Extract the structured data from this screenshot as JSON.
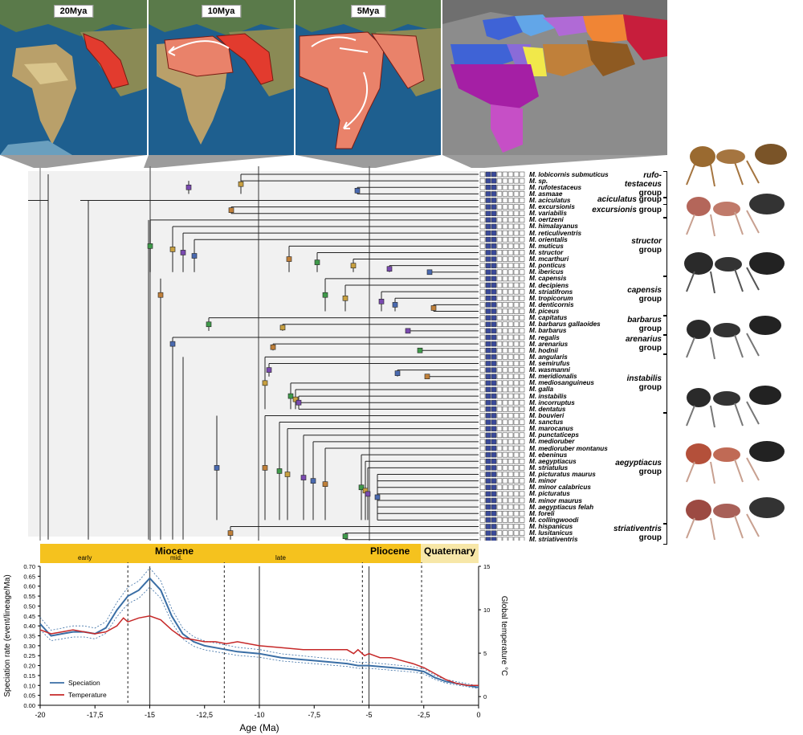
{
  "maps": [
    {
      "label": "20Mya"
    },
    {
      "label": "10Mya"
    },
    {
      "label": "5Mya"
    },
    {
      "label": ""
    }
  ],
  "tips": [
    "M. lobicornis submuticus",
    "M. sp.",
    "M. rufotestaceus",
    "M. asmaae",
    "M. aciculatus",
    "M. excursionis",
    "M. variabilis",
    "M. oertzeni",
    "M. himalayanus",
    "M. reticuliventris",
    "M. orientalis",
    "M. muticus",
    "M. structor",
    "M. mcarthuri",
    "M. ponticus",
    "M. ibericus",
    "M. capensis",
    "M. decipiens",
    "M. striatifrons",
    "M. tropicorum",
    "M. denticornis",
    "M. piceus",
    "M. capitatus",
    "M. barbarus gallaoides",
    "M. barbarus",
    "M. regalis",
    "M. arenarius",
    "M. hodnii",
    "M. angularis",
    "M. semirufus",
    "M. wasmanni",
    "M. meridionalis",
    "M. mediosanguineus",
    "M. galla",
    "M. instabilis",
    "M. incorruptus",
    "M. dentatus",
    "M. bouvieri",
    "M. sanctus",
    "M. marocanus",
    "M. punctaticeps",
    "M. medioruber",
    "M. medioruber montanus",
    "M. ebeninus",
    "M. aegyptiacus",
    "M. striatulus",
    "M. picturatus maurus",
    "M. minor",
    "M. minor calabricus",
    "M. picturatus",
    "M. minor maurus",
    "M. aegyptiacus felah",
    "M. foreli",
    "M. collingwoodi",
    "M. hispanicus",
    "M. lusitanicus",
    "M. striativentris"
  ],
  "groups": [
    {
      "name": "rufo-",
      "name2": "testaceus",
      "word": "group"
    },
    {
      "name": "aciculatus",
      "word": "group"
    },
    {
      "name": "excursionis",
      "word": "group"
    },
    {
      "name": "structor",
      "word": "group"
    },
    {
      "name": "capensis",
      "word": "group"
    },
    {
      "name": "barbarus",
      "word": "group"
    },
    {
      "name": "arenarius",
      "word": "group"
    },
    {
      "name": "instabilis",
      "word": "group"
    },
    {
      "name": "aegyptiacus",
      "word": "group"
    },
    {
      "name": "striativentris",
      "word": "group"
    }
  ],
  "epochs": {
    "miocene": "Miocene",
    "early": "early",
    "mid": "mid.",
    "late": "late",
    "pliocene": "Pliocene",
    "quaternary": "Quaternary"
  },
  "chart_data": {
    "type": "line",
    "xlabel": "Age (Ma)",
    "ylabel": "Speciation rate (event/lineage/Ma)",
    "y2label": "Global temperature °C",
    "xlim": [
      -20,
      0
    ],
    "ylim": [
      0,
      0.7
    ],
    "y2lim": [
      -1,
      15
    ],
    "x_ticks": [
      "-20",
      "-17,5",
      "-15",
      "-12,5",
      "-10",
      "-7,5",
      "-5",
      "-2,5",
      "0"
    ],
    "y_ticks": [
      "0.00",
      "0.05",
      "0.10",
      "0.15",
      "0.20",
      "0.25",
      "0.30",
      "0.35",
      "0.40",
      "0.45",
      "0.50",
      "0.55",
      "0.60",
      "0.65",
      "0.70"
    ],
    "y2_ticks": [
      "0",
      "5",
      "10",
      "15"
    ],
    "series": [
      {
        "name": "Speciation",
        "color": "#3a6ea5",
        "x": [
          -20,
          -19.5,
          -19,
          -18.5,
          -18,
          -17.5,
          -17,
          -16.5,
          -16,
          -15.5,
          -15,
          -14.5,
          -14,
          -13.5,
          -13,
          -12.5,
          -12,
          -11,
          -10,
          -9,
          -8,
          -7,
          -6,
          -5.5,
          -5,
          -4,
          -3,
          -2.5,
          -2,
          -1.5,
          -1,
          -0.5,
          0
        ],
        "y": [
          0.41,
          0.35,
          0.36,
          0.37,
          0.37,
          0.36,
          0.39,
          0.48,
          0.55,
          0.58,
          0.64,
          0.58,
          0.45,
          0.36,
          0.32,
          0.3,
          0.29,
          0.27,
          0.26,
          0.24,
          0.23,
          0.22,
          0.21,
          0.2,
          0.2,
          0.19,
          0.18,
          0.17,
          0.14,
          0.12,
          0.11,
          0.1,
          0.09
        ]
      },
      {
        "name": "Temperature",
        "color": "#c62828",
        "x": [
          -20,
          -19.5,
          -19,
          -18.5,
          -18,
          -17.5,
          -17,
          -16.5,
          -16.2,
          -16,
          -15.5,
          -15,
          -14.5,
          -14,
          -13.5,
          -13,
          -12.5,
          -12,
          -11.5,
          -11,
          -10,
          -9,
          -8,
          -7,
          -6,
          -5.7,
          -5.5,
          -5.2,
          -5,
          -4.5,
          -4,
          -3,
          -2.5,
          -2,
          -1.5,
          -1,
          -0.5,
          0
        ],
        "y": [
          0.38,
          0.36,
          0.37,
          0.38,
          0.37,
          0.36,
          0.37,
          0.4,
          0.44,
          0.42,
          0.44,
          0.45,
          0.43,
          0.38,
          0.34,
          0.33,
          0.32,
          0.32,
          0.31,
          0.32,
          0.3,
          0.29,
          0.28,
          0.28,
          0.28,
          0.26,
          0.28,
          0.25,
          0.26,
          0.24,
          0.24,
          0.21,
          0.19,
          0.16,
          0.13,
          0.11,
          0.1,
          0.1
        ]
      }
    ]
  }
}
